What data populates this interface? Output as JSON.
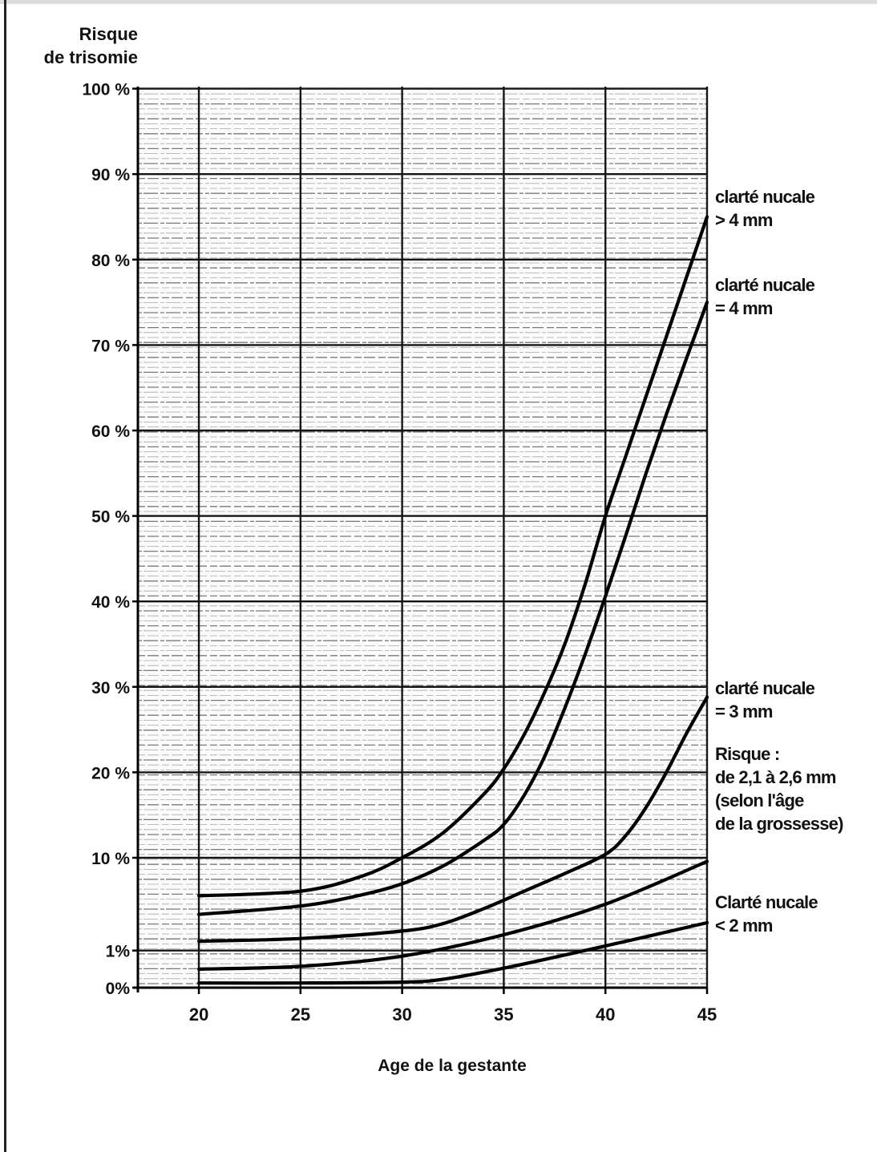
{
  "chart_data": {
    "type": "line",
    "ylabel_lines": [
      "Risque",
      "de trisomie"
    ],
    "xlabel": "Age de la gestante",
    "x_ticks": [
      "20",
      "25",
      "30",
      "35",
      "40",
      "45"
    ],
    "y_ticks": [
      "0%",
      "1%",
      "10 %",
      "20 %",
      "30 %",
      "40 %",
      "50 %",
      "60 %",
      "70 %",
      "80 %",
      "90 %",
      "100 %"
    ],
    "xlim": [
      17,
      45
    ],
    "grid": true,
    "series": [
      {
        "points": [
          [
            20,
            5.9
          ],
          [
            25,
            6.4
          ],
          [
            28,
            8.0
          ],
          [
            30,
            10.0
          ],
          [
            32,
            12.9
          ],
          [
            34,
            17.4
          ],
          [
            35,
            20.4
          ],
          [
            36,
            24.4
          ],
          [
            37,
            29.3
          ],
          [
            38,
            35.0
          ],
          [
            39,
            42.0
          ],
          [
            40,
            50.0
          ],
          [
            41,
            57.0
          ],
          [
            42,
            64.0
          ],
          [
            43,
            71.0
          ],
          [
            44,
            78.0
          ],
          [
            45,
            85.0
          ]
        ]
      },
      {
        "points": [
          [
            20,
            3.9
          ],
          [
            25,
            4.8
          ],
          [
            28,
            6.0
          ],
          [
            30,
            7.2
          ],
          [
            32,
            9.1
          ],
          [
            34,
            12.0
          ],
          [
            35,
            13.9
          ],
          [
            36,
            17.3
          ],
          [
            37,
            21.8
          ],
          [
            38,
            27.5
          ],
          [
            39,
            33.8
          ],
          [
            40,
            40.6
          ],
          [
            41,
            47.7
          ],
          [
            42,
            55.0
          ],
          [
            43,
            61.9
          ],
          [
            44,
            68.5
          ],
          [
            45,
            75.0
          ]
        ]
      },
      {
        "points": [
          [
            20,
            1.0
          ],
          [
            25,
            1.3
          ],
          [
            30,
            2.1
          ],
          [
            32,
            2.9
          ],
          [
            34,
            4.5
          ],
          [
            36,
            6.4
          ],
          [
            38,
            8.3
          ],
          [
            40,
            10.4
          ],
          [
            41,
            12.6
          ],
          [
            42,
            15.9
          ],
          [
            43,
            20.0
          ],
          [
            44,
            24.6
          ],
          [
            45,
            28.8
          ]
        ]
      },
      {
        "points": [
          [
            20,
            -2.0
          ],
          [
            25,
            -1.7
          ],
          [
            30,
            -0.6
          ],
          [
            35,
            1.7
          ],
          [
            40,
            5.0
          ],
          [
            45,
            9.6
          ]
        ]
      },
      {
        "points": [
          [
            20,
            -3.5
          ],
          [
            25,
            -3.5
          ],
          [
            30,
            -3.4
          ],
          [
            32,
            -3.1
          ],
          [
            35,
            -1.9
          ],
          [
            40,
            0.5
          ],
          [
            45,
            3.0
          ]
        ]
      }
    ],
    "labels": [
      {
        "lines": [
          "clarté nucale",
          "> 4 mm"
        ]
      },
      {
        "lines": [
          "clarté nucale",
          "= 4 mm"
        ]
      },
      {
        "lines": [
          "clarté nucale",
          "= 3 mm"
        ]
      },
      {
        "lines": [
          "Risque :",
          "de 2,1 à 2,6 mm",
          "(selon l'âge",
          "de la grossesse)"
        ]
      },
      {
        "lines": [
          "Clarté nucale",
          "< 2 mm"
        ]
      }
    ]
  }
}
